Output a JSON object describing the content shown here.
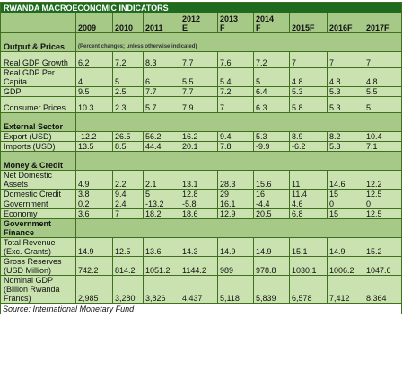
{
  "title": "RWANDA MACROECONOMIC INDICATORS",
  "headers": [
    {
      "line1": "",
      "line2": "2009"
    },
    {
      "line1": "",
      "line2": "2010"
    },
    {
      "line1": "",
      "line2": "2011"
    },
    {
      "line1": "2012",
      "line2": "E"
    },
    {
      "line1": "2013",
      "line2": "F"
    },
    {
      "line1": "2014",
      "line2": "F"
    },
    {
      "line1": "",
      "line2": "2015F"
    },
    {
      "line1": "",
      "line2": "2016F"
    },
    {
      "line1": "",
      "line2": "2017F"
    }
  ],
  "sections": [
    {
      "label": "Output & Prices",
      "note": "(Percent changes; unless otherwise indicated)",
      "rows": [
        {
          "label": "Real GDP Growth",
          "values": [
            "6.2",
            "7.2",
            "8.3",
            "7.7",
            "7.6",
            "7.2",
            "7",
            "7",
            "7"
          ]
        },
        {
          "label": "Real GDP Per Capita",
          "values": [
            "4",
            "5",
            "6",
            "5.5",
            "5.4",
            "5",
            "4.8",
            "4.8",
            "4.8"
          ]
        },
        {
          "label": "GDP",
          "values": [
            "9.5",
            "2.5",
            "7.7",
            "7.7",
            "7.2",
            "6.4",
            "5.3",
            "5.3",
            "5.5"
          ]
        },
        {
          "label": "Consumer Prices",
          "values": [
            "10.3",
            "2.3",
            "5.7",
            "7.9",
            "7",
            "6.3",
            "5.8",
            "5.3",
            "5"
          ]
        }
      ]
    },
    {
      "label": "External Sector",
      "rows": [
        {
          "label": "Export (USD)",
          "values": [
            "-12.2",
            "26.5",
            "56.2",
            "16.2",
            "9.4",
            "5.3",
            "8.9",
            "8.2",
            "10.4"
          ]
        },
        {
          "label": "Imports (USD)",
          "values": [
            "13.5",
            "8.5",
            "44.4",
            "20.1",
            "7.8",
            "-9.9",
            "-6.2",
            "5.3",
            "7.1"
          ]
        }
      ]
    },
    {
      "label": "Money & Credit",
      "rows": [
        {
          "label": "Net Domestic Assets",
          "values": [
            "4.9",
            "2.2",
            "2.1",
            "13.1",
            "28.3",
            "15.6",
            "11",
            "14.6",
            "12.2"
          ]
        },
        {
          "label": "Domestic Credit",
          "values": [
            "3.8",
            "9.4",
            "5",
            "12.8",
            "29",
            "16",
            "11.4",
            "15",
            "12.5"
          ]
        },
        {
          "label": "Government",
          "values": [
            "0.2",
            "2.4",
            "-13.2",
            "-5.8",
            "16.1",
            "-4.4",
            "4.6",
            "0",
            "0"
          ]
        },
        {
          "label": "Economy",
          "values": [
            "3.6",
            "7",
            "18.2",
            "18.6",
            "12.9",
            "20.5",
            "6.8",
            "15",
            "12.5"
          ]
        }
      ]
    },
    {
      "label": "Government Finance",
      "rows": [
        {
          "label": "Total Revenue (Exc. Grants)",
          "values": [
            "14.9",
            "12.5",
            "13.6",
            "14.3",
            "14.9",
            "14.9",
            "15.1",
            "14.9",
            "15.2"
          ]
        },
        {
          "label": "Gross Reserves (USD Million)",
          "values": [
            "742.2",
            "814.2",
            "1051.2",
            "1144.2",
            "989",
            "978.8",
            "1030.1",
            "1006.2",
            "1047.6"
          ]
        },
        {
          "label": "Nominal GDP (Billion Rwanda Francs)",
          "values": [
            "2,985",
            "3,280",
            "3,826",
            "4,437",
            "5,118",
            "5,839",
            "6,578",
            "7,412",
            "8,364"
          ]
        }
      ]
    }
  ],
  "source": "Source: International Monetary Fund",
  "colors": {
    "title_bg": "#1e6b20",
    "header_bg": "#a6c988",
    "cell_bg": "#c9e2b0",
    "border": "#3f6f1f"
  }
}
